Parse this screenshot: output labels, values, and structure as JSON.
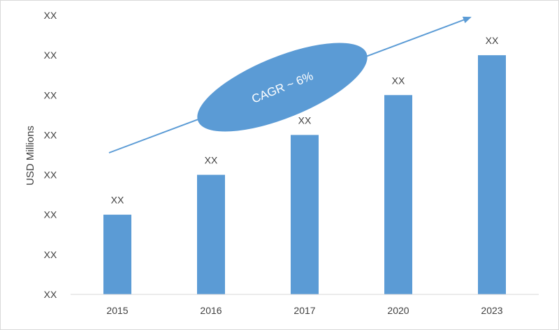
{
  "chart_data": {
    "type": "bar",
    "ylabel": "USD Millions",
    "categories": [
      "2015",
      "2016",
      "2017",
      "2020",
      "2023"
    ],
    "values": [
      2,
      3,
      4,
      5,
      6
    ],
    "data_labels": [
      "XX",
      "XX",
      "XX",
      "XX",
      "XX"
    ],
    "ylim": [
      0,
      7
    ],
    "y_tick_labels": [
      "XX",
      "XX",
      "XX",
      "XX",
      "XX",
      "XX",
      "XX",
      "XX"
    ],
    "annotation": "CAGR ~ 6%",
    "grid": false,
    "bar_color": "#5b9bd5",
    "annotation_color": "#5b9bd5"
  }
}
